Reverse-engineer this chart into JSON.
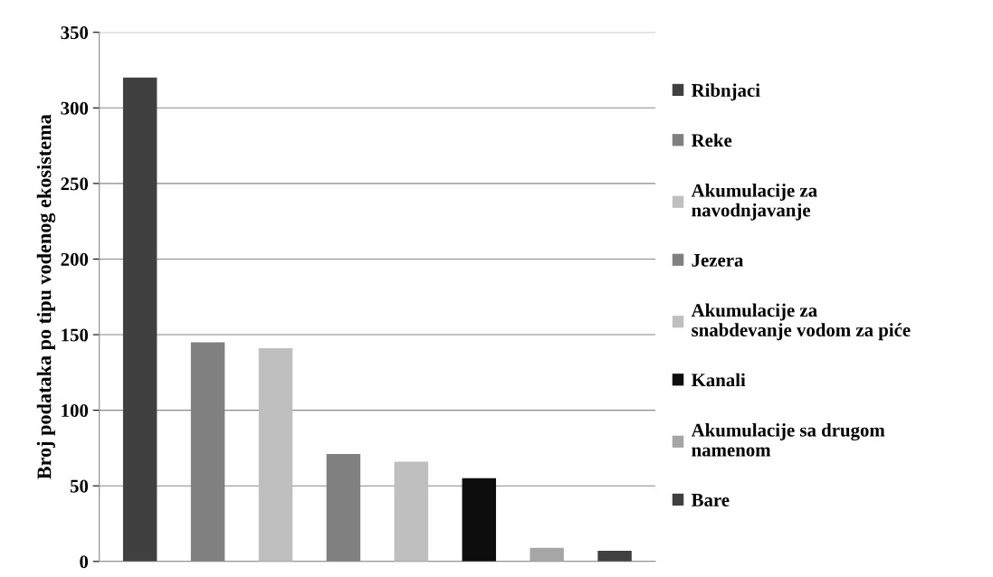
{
  "chart_data": {
    "type": "bar",
    "ylabel": "Broj podataka po tipu vodenog ekosistema",
    "categories": [
      null,
      null,
      null,
      null,
      null,
      null,
      null,
      null
    ],
    "series": [
      {
        "name": "Ribnjaci",
        "color": "#404040",
        "values": [
          320,
          null,
          null,
          null,
          null,
          null,
          null,
          null
        ]
      },
      {
        "name": "Reke",
        "color": "#808080",
        "values": [
          null,
          145,
          null,
          null,
          null,
          null,
          null,
          null
        ]
      },
      {
        "name": "Akumulacije za navodnjavanje",
        "color": "#bfbfbf",
        "values": [
          null,
          null,
          141,
          null,
          null,
          null,
          null,
          null
        ]
      },
      {
        "name": "Jezera",
        "color": "#808080",
        "values": [
          null,
          null,
          null,
          71,
          null,
          null,
          null,
          null
        ]
      },
      {
        "name": "Akumulacije za snabdevanje vodom za piće",
        "color": "#bfbfbf",
        "values": [
          null,
          null,
          null,
          null,
          66,
          null,
          null,
          null
        ]
      },
      {
        "name": "Kanali",
        "color": "#0d0d0d",
        "values": [
          null,
          null,
          null,
          null,
          null,
          55,
          null,
          null
        ]
      },
      {
        "name": "Akumulacije sa drugom namenom",
        "color": "#a6a6a6",
        "values": [
          null,
          null,
          null,
          null,
          null,
          null,
          9,
          null
        ]
      },
      {
        "name": "Bare",
        "color": "#404040",
        "values": [
          null,
          null,
          null,
          null,
          null,
          null,
          null,
          7
        ]
      }
    ],
    "ylim": [
      0,
      350
    ],
    "yticks": [
      0,
      50,
      100,
      150,
      200,
      250,
      300,
      350
    ],
    "grid": "y",
    "legend": "right",
    "tick_labels": "y"
  }
}
